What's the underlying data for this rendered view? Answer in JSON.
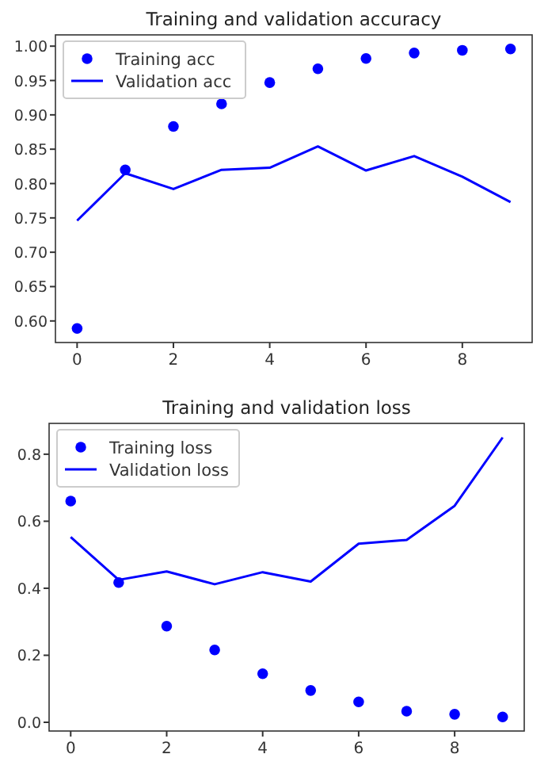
{
  "chart_data": [
    {
      "type": "line",
      "title": "Training and validation accuracy",
      "x": [
        0,
        1,
        2,
        3,
        4,
        5,
        6,
        7,
        8,
        9
      ],
      "xlim": [
        -0.45,
        9.45
      ],
      "xticks": [
        0,
        2,
        4,
        6,
        8
      ],
      "ylim": [
        0.5686,
        1.0164
      ],
      "yticks": [
        {
          "value": 0.6,
          "label": "0.60"
        },
        0.65,
        {
          "value": 0.7,
          "label": "0.70"
        },
        0.75,
        {
          "value": 0.8,
          "label": "0.80"
        },
        0.85,
        {
          "value": 0.9,
          "label": "0.90"
        },
        0.95,
        {
          "value": 1.0,
          "label": "1.00"
        }
      ],
      "legend": "top left",
      "grid": false,
      "series": [
        {
          "name": "Training acc",
          "type": "scatter",
          "marker": "circle",
          "color": "#0000ff",
          "values": [
            0.589,
            0.82,
            0.883,
            0.916,
            0.947,
            0.967,
            0.982,
            0.99,
            0.994,
            0.996
          ]
        },
        {
          "name": "Validation acc",
          "type": "line",
          "line_style": "solid",
          "color": "#0000ff",
          "values": [
            0.746,
            0.815,
            0.792,
            0.82,
            0.823,
            0.854,
            0.819,
            0.84,
            0.81,
            0.773
          ]
        }
      ]
    },
    {
      "type": "line",
      "title": "Training and validation loss",
      "x": [
        0,
        1,
        2,
        3,
        4,
        5,
        6,
        7,
        8,
        9
      ],
      "xlim": [
        -0.45,
        9.45
      ],
      "xticks": [
        0,
        2,
        4,
        6,
        8
      ],
      "ylim": [
        -0.026,
        0.892
      ],
      "yticks": [
        {
          "value": 0,
          "label": "0.0"
        },
        0.2,
        0.4,
        0.6,
        0.8
      ],
      "legend": "top left",
      "grid": false,
      "series": [
        {
          "name": "Training loss",
          "type": "scatter",
          "marker": "circle",
          "color": "#0000ff",
          "values": [
            0.66,
            0.417,
            0.287,
            0.216,
            0.145,
            0.095,
            0.061,
            0.033,
            0.024,
            0.016
          ]
        },
        {
          "name": "Validation loss",
          "type": "line",
          "line_style": "solid",
          "color": "#0000ff",
          "values": [
            0.553,
            0.425,
            0.45,
            0.412,
            0.448,
            0.42,
            0.533,
            0.544,
            0.646,
            0.85
          ]
        }
      ]
    }
  ]
}
